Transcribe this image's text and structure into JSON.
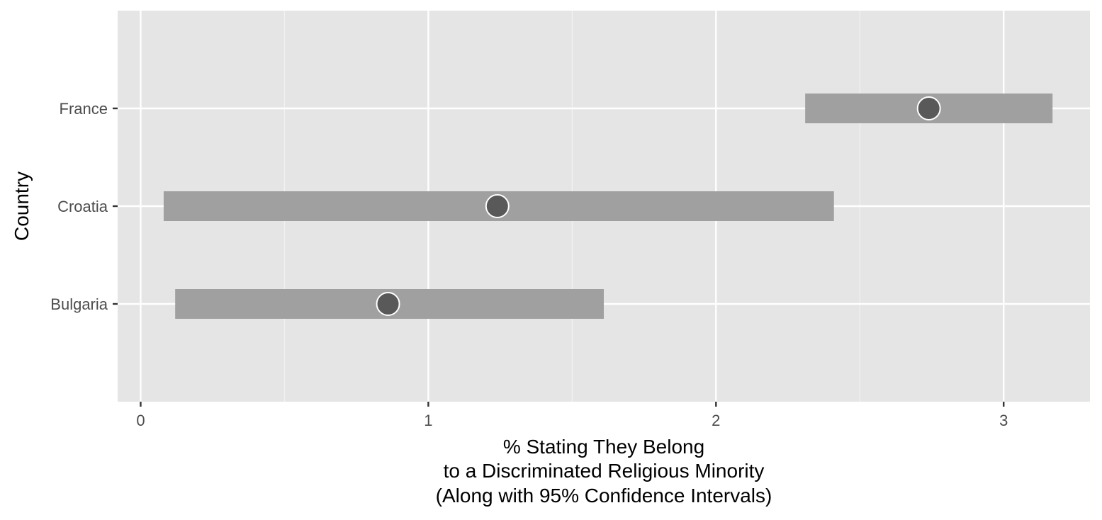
{
  "chart_data": {
    "type": "pointrange",
    "xlabel": [
      "% Stating They Belong",
      "to a Discriminated Religious Minority",
      "(Along with 95% Confidence Intervals)"
    ],
    "ylabel": "Country",
    "xlim": [
      -0.08,
      3.3
    ],
    "x_ticks": [
      0,
      1,
      2,
      3
    ],
    "x_minor_ticks": [
      0.5,
      1.5,
      2.5
    ],
    "categories": [
      "Bulgaria",
      "Croatia",
      "France"
    ],
    "points": [
      {
        "country": "Bulgaria",
        "estimate": 0.86,
        "ci_low": 0.12,
        "ci_high": 1.61
      },
      {
        "country": "Croatia",
        "estimate": 1.24,
        "ci_low": 0.08,
        "ci_high": 2.41
      },
      {
        "country": "France",
        "estimate": 2.74,
        "ci_low": 2.31,
        "ci_high": 3.17
      }
    ],
    "grid": true,
    "colors": {
      "panel": "#e5e5e5",
      "grid_major": "#ffffff",
      "grid_minor": "#f2f2f2",
      "interval": "#a0a0a0",
      "point": "#595959",
      "point_stroke": "#ffffff"
    }
  }
}
